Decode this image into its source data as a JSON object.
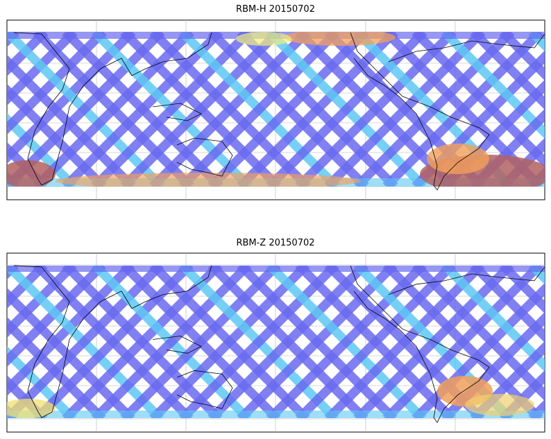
{
  "panels": [
    {
      "title": "RBM-H 20150702",
      "colormap": "jet",
      "high_regions": [
        "South Atlantic",
        "southern high latitudes",
        "north Pacific"
      ]
    },
    {
      "title": "RBM-Z 20150702",
      "colormap": "jet",
      "high_regions": [
        "South Atlantic"
      ]
    }
  ],
  "colors": {
    "track_low": "#6a6af0",
    "track_mid": "#5ec8f5",
    "track_high": "#f2a05a",
    "track_max": "#b26262",
    "coastline": "#000000",
    "grid": "#b0b0b0"
  },
  "map": {
    "projection": "cylindrical",
    "lon_range": [
      40,
      400
    ],
    "lat_range": [
      -60,
      60
    ],
    "gridlines": true
  }
}
